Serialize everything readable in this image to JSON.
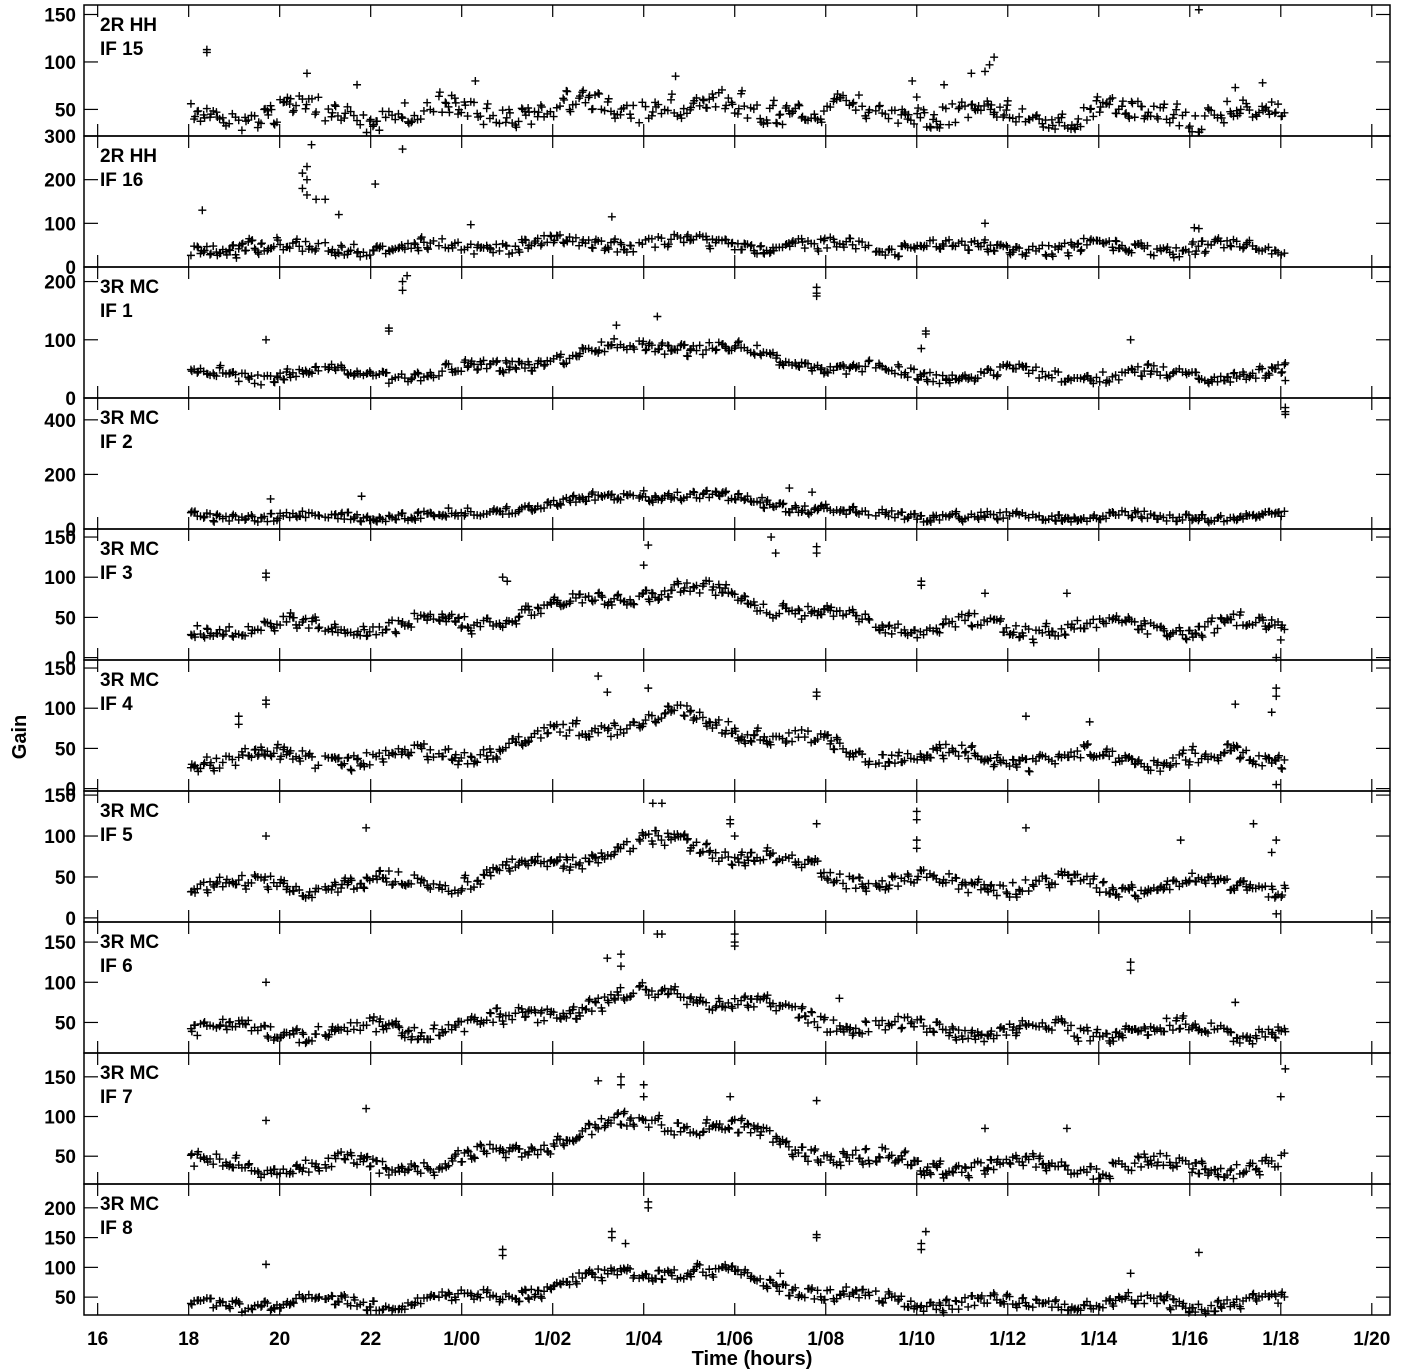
{
  "chart_data": {
    "type": "scatter",
    "marker": "+",
    "colors": {
      "marker": "#000000",
      "axis": "#000000",
      "background": "#ffffff"
    },
    "ylabel": "Gain",
    "xlabel": "Time (hours)",
    "x_ticks": [
      "16",
      "18",
      "20",
      "22",
      "1/00",
      "1/02",
      "1/04",
      "1/06",
      "1/08",
      "1/10",
      "1/12",
      "1/14",
      "1/16",
      "1/18",
      "1/20"
    ],
    "x_tick_hours": [
      16,
      18,
      20,
      22,
      24,
      26,
      28,
      30,
      32,
      34,
      36,
      38,
      40,
      42,
      44
    ],
    "xlim": [
      15.7,
      44.4
    ],
    "panels": [
      {
        "title": "2R HH",
        "subtitle": "IF 15",
        "ylim": [
          22,
          160
        ],
        "yticks": [
          50,
          100,
          150
        ],
        "ytick_labels": [
          "50",
          "100",
          "150"
        ],
        "trend": 45,
        "noise": 12,
        "bump": 10,
        "seed": 15,
        "outliers": [
          [
            18.4,
            113
          ],
          [
            18.4,
            110
          ],
          [
            20.6,
            88
          ],
          [
            21.7,
            76
          ],
          [
            24.3,
            80
          ],
          [
            28.7,
            85
          ],
          [
            33.9,
            80
          ],
          [
            34.6,
            76
          ],
          [
            35.5,
            90
          ],
          [
            35.7,
            105
          ],
          [
            35.6,
            97
          ],
          [
            40.2,
            155
          ],
          [
            41.0,
            73
          ],
          [
            41.6,
            78
          ],
          [
            36.0,
            59
          ],
          [
            34.0,
            63
          ],
          [
            35.2,
            88
          ]
        ]
      },
      {
        "title": "2R HH",
        "subtitle": "IF 16",
        "ylim": [
          0,
          300
        ],
        "yticks": [
          0,
          100,
          200,
          300
        ],
        "ytick_labels": [
          "0",
          "100",
          "200",
          "300"
        ],
        "trend": 45,
        "noise": 15,
        "bump": 10,
        "seed": 16,
        "outliers": [
          [
            18.3,
            130
          ],
          [
            20.7,
            280
          ],
          [
            20.6,
            230
          ],
          [
            20.5,
            215
          ],
          [
            20.6,
            200
          ],
          [
            20.5,
            180
          ],
          [
            20.6,
            165
          ],
          [
            20.8,
            155
          ],
          [
            21.0,
            155
          ],
          [
            22.7,
            270
          ],
          [
            22.1,
            190
          ],
          [
            21.3,
            120
          ],
          [
            24.2,
            97
          ],
          [
            27.3,
            115
          ],
          [
            35.5,
            100
          ],
          [
            40.1,
            90
          ],
          [
            40.2,
            88
          ]
        ]
      },
      {
        "title": "3R MC",
        "subtitle": "IF 1",
        "ylim": [
          0,
          225
        ],
        "yticks": [
          0,
          100,
          200
        ],
        "ytick_labels": [
          "0",
          "100",
          "200"
        ],
        "trend": 40,
        "noise": 10,
        "bump": 50,
        "seed": 1,
        "outliers": [
          [
            22.8,
            210
          ],
          [
            22.7,
            200
          ],
          [
            22.7,
            185
          ],
          [
            31.8,
            190
          ],
          [
            31.8,
            180
          ],
          [
            31.8,
            175
          ],
          [
            22.4,
            115
          ],
          [
            22.4,
            120
          ],
          [
            19.7,
            100
          ],
          [
            27.4,
            125
          ],
          [
            28.3,
            140
          ],
          [
            34.2,
            115
          ],
          [
            34.2,
            110
          ],
          [
            34.1,
            85
          ],
          [
            38.7,
            100
          ],
          [
            42.1,
            30
          ]
        ]
      },
      {
        "title": "3R MC",
        "subtitle": "IF 2",
        "ylim": [
          0,
          480
        ],
        "yticks": [
          0,
          200,
          400
        ],
        "ytick_labels": [
          "0",
          "200",
          "400"
        ],
        "trend": 45,
        "noise": 15,
        "bump": 80,
        "seed": 2,
        "outliers": [
          [
            42.1,
            445
          ],
          [
            42.1,
            430
          ],
          [
            42.1,
            420
          ],
          [
            19.8,
            110
          ],
          [
            21.8,
            120
          ],
          [
            28.0,
            140
          ],
          [
            31.2,
            150
          ],
          [
            31.7,
            135
          ],
          [
            30.6,
            115
          ],
          [
            32.0,
            90
          ]
        ]
      },
      {
        "title": "3R MC",
        "subtitle": "IF 3",
        "ylim": [
          -3,
          160
        ],
        "yticks": [
          0,
          50,
          100,
          150
        ],
        "ytick_labels": [
          "0",
          "50",
          "100",
          "150"
        ],
        "trend": 38,
        "noise": 9,
        "bump": 45,
        "seed": 3,
        "outliers": [
          [
            19.7,
            105
          ],
          [
            19.7,
            100
          ],
          [
            28.1,
            140
          ],
          [
            28.0,
            115
          ],
          [
            30.8,
            150
          ],
          [
            30.9,
            130
          ],
          [
            31.8,
            138
          ],
          [
            31.8,
            130
          ],
          [
            34.1,
            95
          ],
          [
            34.1,
            90
          ],
          [
            24.9,
            100
          ],
          [
            25.0,
            95
          ],
          [
            37.3,
            80
          ],
          [
            41.9,
            0
          ],
          [
            42.0,
            22
          ],
          [
            35.5,
            80
          ]
        ]
      },
      {
        "title": "3R MC",
        "subtitle": "IF 4",
        "ylim": [
          -3,
          160
        ],
        "yticks": [
          0,
          50,
          100,
          150
        ],
        "ytick_labels": [
          "0",
          "50",
          "100",
          "150"
        ],
        "trend": 38,
        "noise": 9,
        "bump": 50,
        "seed": 4,
        "outliers": [
          [
            19.7,
            110
          ],
          [
            19.7,
            105
          ],
          [
            19.1,
            90
          ],
          [
            19.1,
            80
          ],
          [
            27.0,
            140
          ],
          [
            27.2,
            120
          ],
          [
            28.1,
            125
          ],
          [
            31.8,
            120
          ],
          [
            31.8,
            115
          ],
          [
            41.9,
            125
          ],
          [
            41.9,
            115
          ],
          [
            41.8,
            95
          ],
          [
            41.9,
            5
          ],
          [
            41.0,
            105
          ],
          [
            36.4,
            90
          ],
          [
            37.8,
            83
          ]
        ]
      },
      {
        "title": "3R MC",
        "subtitle": "IF 5",
        "ylim": [
          -5,
          155
        ],
        "yticks": [
          0,
          50,
          100,
          150
        ],
        "ytick_labels": [
          "0",
          "50",
          "100",
          "150"
        ],
        "trend": 40,
        "noise": 9,
        "bump": 50,
        "seed": 5,
        "outliers": [
          [
            19.7,
            100
          ],
          [
            21.9,
            110
          ],
          [
            28.2,
            140
          ],
          [
            28.4,
            140
          ],
          [
            29.9,
            120
          ],
          [
            29.9,
            115
          ],
          [
            30.0,
            100
          ],
          [
            31.8,
            115
          ],
          [
            34.0,
            130
          ],
          [
            34.0,
            120
          ],
          [
            34.0,
            95
          ],
          [
            34.0,
            85
          ],
          [
            36.4,
            110
          ],
          [
            41.9,
            95
          ],
          [
            41.8,
            80
          ],
          [
            41.9,
            5
          ],
          [
            41.4,
            115
          ],
          [
            39.8,
            95
          ]
        ]
      },
      {
        "title": "3R MC",
        "subtitle": "IF 6",
        "ylim": [
          12,
          175
        ],
        "yticks": [
          50,
          100,
          150
        ],
        "ytick_labels": [
          "50",
          "100",
          "150"
        ],
        "trend": 40,
        "noise": 9,
        "bump": 45,
        "seed": 6,
        "outliers": [
          [
            19.7,
            100
          ],
          [
            27.2,
            130
          ],
          [
            27.5,
            135
          ],
          [
            27.5,
            120
          ],
          [
            28.3,
            160
          ],
          [
            28.4,
            160
          ],
          [
            30.0,
            150
          ],
          [
            30.0,
            160
          ],
          [
            30.0,
            145
          ],
          [
            38.7,
            125
          ],
          [
            38.7,
            115
          ],
          [
            41.0,
            75
          ],
          [
            32.3,
            80
          ]
        ]
      },
      {
        "title": "3R MC",
        "subtitle": "IF 7",
        "ylim": [
          15,
          180
        ],
        "yticks": [
          50,
          100,
          150
        ],
        "ytick_labels": [
          "50",
          "100",
          "150"
        ],
        "trend": 38,
        "noise": 9,
        "bump": 55,
        "seed": 7,
        "outliers": [
          [
            19.7,
            95
          ],
          [
            21.9,
            110
          ],
          [
            27.0,
            145
          ],
          [
            27.5,
            150
          ],
          [
            27.5,
            140
          ],
          [
            28.0,
            140
          ],
          [
            28.0,
            125
          ],
          [
            29.9,
            125
          ],
          [
            31.8,
            120
          ],
          [
            42.1,
            160
          ],
          [
            42.0,
            125
          ],
          [
            35.5,
            85
          ],
          [
            37.3,
            85
          ]
        ]
      },
      {
        "title": "3R MC",
        "subtitle": "IF 8",
        "ylim": [
          20,
          240
        ],
        "yticks": [
          50,
          100,
          150,
          200
        ],
        "ytick_labels": [
          "50",
          "100",
          "150",
          "200"
        ],
        "trend": 40,
        "noise": 10,
        "bump": 55,
        "seed": 8,
        "outliers": [
          [
            19.7,
            105
          ],
          [
            28.1,
            210
          ],
          [
            28.1,
            200
          ],
          [
            27.3,
            160
          ],
          [
            27.3,
            150
          ],
          [
            27.6,
            140
          ],
          [
            31.8,
            155
          ],
          [
            31.8,
            150
          ],
          [
            34.2,
            160
          ],
          [
            34.1,
            140
          ],
          [
            34.1,
            130
          ],
          [
            24.9,
            130
          ],
          [
            24.9,
            120
          ],
          [
            38.7,
            90
          ],
          [
            40.2,
            125
          ],
          [
            31.0,
            90
          ]
        ]
      }
    ]
  }
}
